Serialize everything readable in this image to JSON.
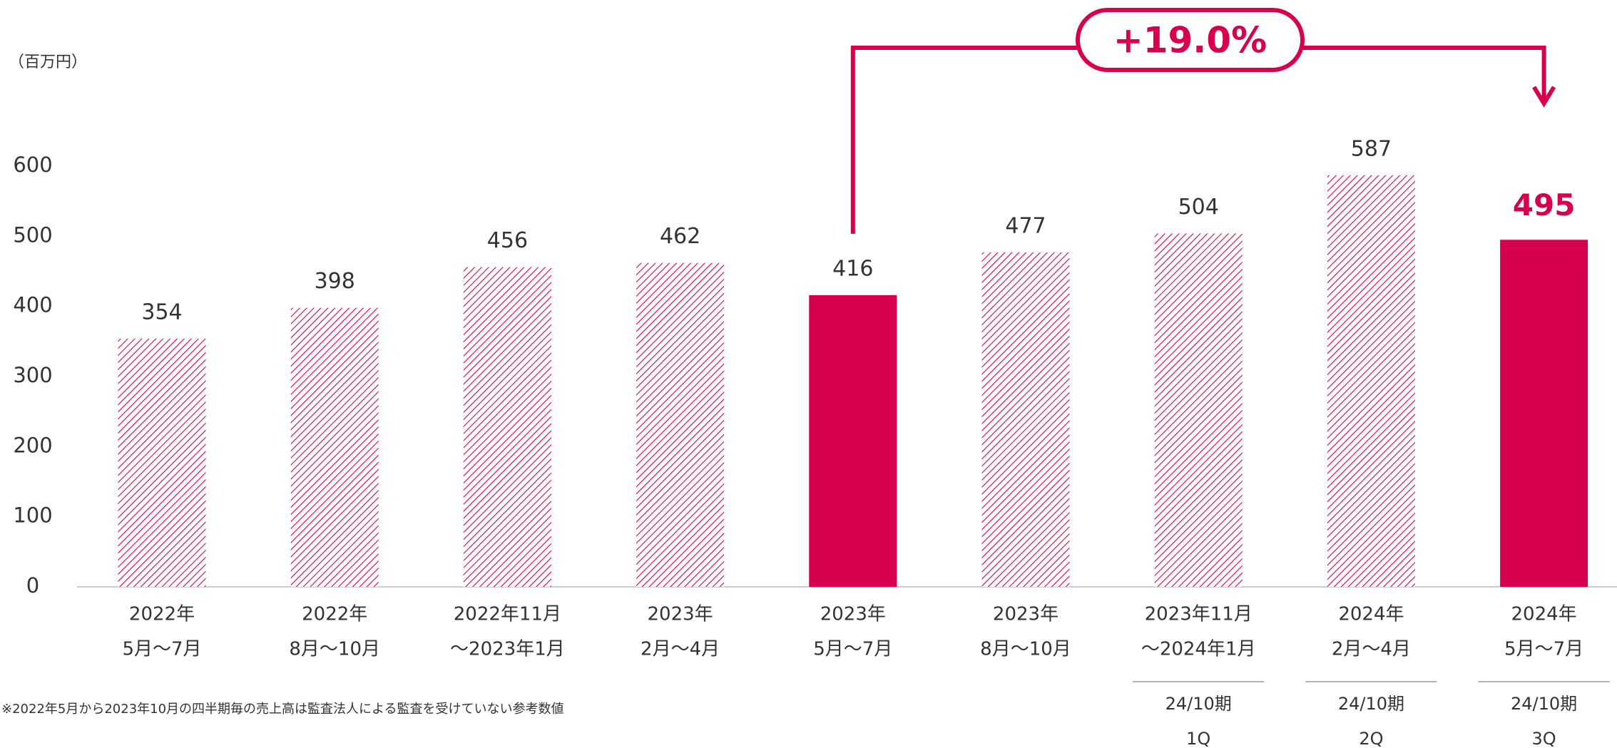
{
  "chart_data": {
    "type": "bar",
    "unit_label": "（百万円）",
    "categories": [
      [
        "2022年",
        "5月～7月"
      ],
      [
        "2022年",
        "8月～10月"
      ],
      [
        "2022年11月",
        "～2023年1月"
      ],
      [
        "2023年",
        "2月～4月"
      ],
      [
        "2023年",
        "5月～7月"
      ],
      [
        "2023年",
        "8月～10月"
      ],
      [
        "2023年11月",
        "～2024年1月"
      ],
      [
        "2024年",
        "2月～4月"
      ],
      [
        "2024年",
        "5月～7月"
      ]
    ],
    "values": [
      354,
      398,
      456,
      462,
      416,
      477,
      504,
      587,
      495
    ],
    "solid": [
      false,
      false,
      false,
      false,
      true,
      false,
      false,
      false,
      true
    ],
    "emphasized_label": [
      false,
      false,
      false,
      false,
      false,
      false,
      false,
      false,
      true
    ],
    "color": "#d6004f",
    "ylim": [
      0,
      600
    ],
    "yticks": [
      0,
      100,
      200,
      300,
      400,
      500,
      600
    ],
    "annotation": {
      "text": "+19.0%",
      "from": 4,
      "to": 8
    },
    "periods": [
      {
        "category": 6,
        "lines": [
          "24/10期",
          "1Q"
        ]
      },
      {
        "category": 7,
        "lines": [
          "24/10期",
          "2Q"
        ]
      },
      {
        "category": 8,
        "lines": [
          "24/10期",
          "3Q"
        ]
      }
    ],
    "footnote": "※2022年5月から2023年10月の四半期毎の売上高は監査法人による監査を受けていない参考数値"
  }
}
